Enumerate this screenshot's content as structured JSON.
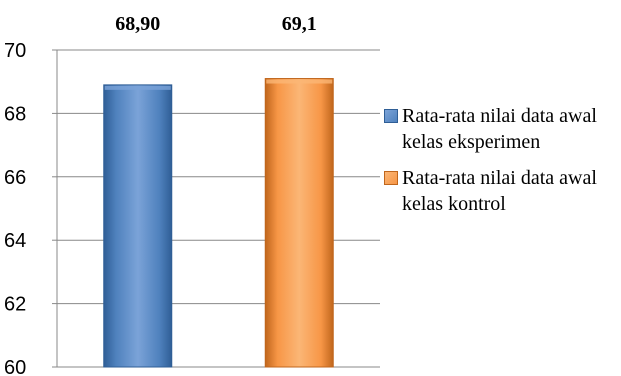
{
  "chart_data": {
    "type": "bar",
    "categories": [
      "Rata-rata nilai data awal kelas eksperimen",
      "Rata-rata nilai data awal kelas kontrol"
    ],
    "values": [
      68.9,
      69.1
    ],
    "data_labels": [
      "68,90",
      "69,1"
    ],
    "title": "",
    "xlabel": "",
    "ylabel": "",
    "ylim": [
      60,
      70
    ],
    "yticks": [
      60,
      62,
      64,
      66,
      68,
      70
    ],
    "ytick_labels": [
      "60",
      "62",
      "64",
      "66",
      "68",
      "70"
    ],
    "grid": true,
    "legend_position": "right",
    "colors": [
      "#4F81BD",
      "#F79646"
    ],
    "highlight_colors": [
      "#7BA3D8",
      "#FBB676"
    ],
    "edge_colors": [
      "#2F5E96",
      "#C0661C"
    ]
  }
}
